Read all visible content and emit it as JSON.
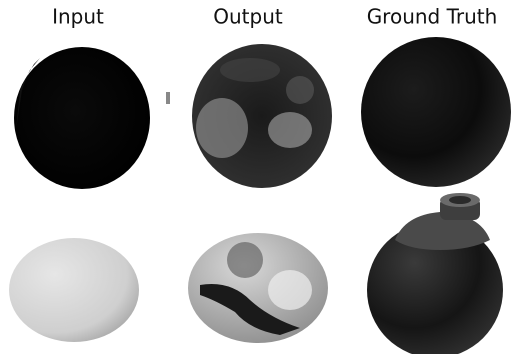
{
  "headers": [
    "Input",
    "Output",
    "Ground Truth"
  ]
}
